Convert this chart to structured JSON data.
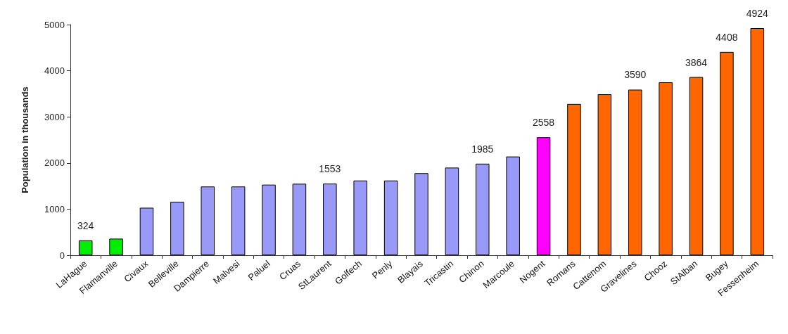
{
  "chart_data": {
    "type": "bar",
    "ylabel": "Population in thousands",
    "categories": [
      "LaHague",
      "Flamanville",
      "Civaux",
      "Belleville",
      "Dampierre",
      "Malvesi",
      "Paluel",
      "Cruas",
      "StLaurent",
      "Golfech",
      "Penly",
      "Blayais",
      "Tricastin",
      "Chinon",
      "Marcoule",
      "Nogent",
      "Romans",
      "Cattenom",
      "Gravelines",
      "Chooz",
      "StAlban",
      "Bugey",
      "Fessenheim"
    ],
    "values": [
      324,
      360,
      1030,
      1160,
      1490,
      1490,
      1530,
      1550,
      1553,
      1620,
      1620,
      1780,
      1900,
      1985,
      2140,
      2558,
      3280,
      3490,
      3590,
      3750,
      3864,
      4408,
      4924
    ],
    "value_labels": [
      "324",
      null,
      null,
      null,
      null,
      null,
      null,
      null,
      "1553",
      null,
      null,
      null,
      null,
      "1985",
      null,
      "2558",
      null,
      null,
      "3590",
      null,
      "3864",
      "4408",
      "4924"
    ],
    "colors": [
      "#00ee00",
      "#00ee00",
      "#9999f7",
      "#9999f7",
      "#9999f7",
      "#9999f7",
      "#9999f7",
      "#9999f7",
      "#9999f7",
      "#9999f7",
      "#9999f7",
      "#9999f7",
      "#9999f7",
      "#9999f7",
      "#9999f7",
      "#ff00ff",
      "#ff6600",
      "#ff6600",
      "#ff6600",
      "#ff6600",
      "#ff6600",
      "#ff6600",
      "#ff6600"
    ],
    "ylim": [
      0,
      5000
    ],
    "yticks": [
      0,
      1000,
      2000,
      3000,
      4000,
      5000
    ],
    "grid": false
  }
}
